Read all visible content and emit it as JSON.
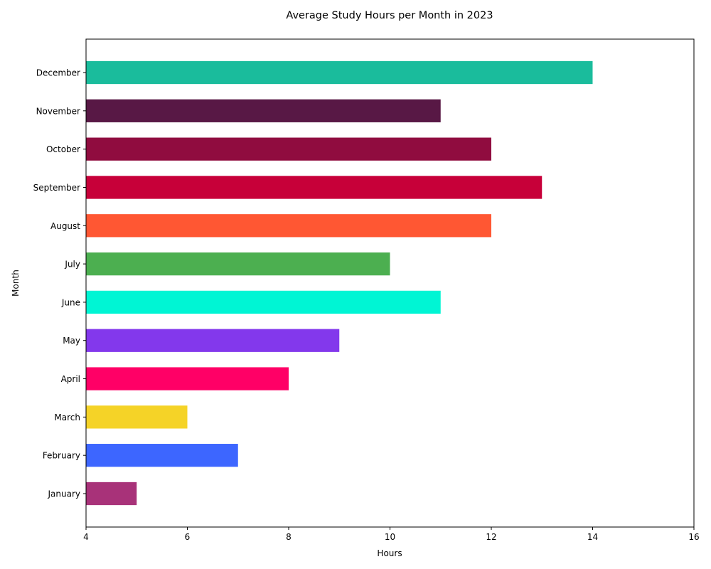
{
  "chart_data": {
    "type": "bar",
    "orientation": "horizontal",
    "title": "Average Study Hours per Month in 2023",
    "xlabel": "Hours",
    "ylabel": "Month",
    "xlim": [
      4,
      16
    ],
    "xticks": [
      4,
      6,
      8,
      10,
      12,
      14,
      16
    ],
    "grid": false,
    "categories": [
      "January",
      "February",
      "March",
      "April",
      "May",
      "June",
      "July",
      "August",
      "September",
      "October",
      "November",
      "December"
    ],
    "values": [
      5,
      7,
      6,
      8,
      9,
      11,
      10,
      12,
      13,
      12,
      11,
      14
    ],
    "colors": [
      "#A83279",
      "#3D66FF",
      "#F5D327",
      "#FF0066",
      "#8338EC",
      "#00F5D4",
      "#4CAF50",
      "#FF5733",
      "#C70039",
      "#900C3F",
      "#581845",
      "#1ABC9C"
    ]
  }
}
